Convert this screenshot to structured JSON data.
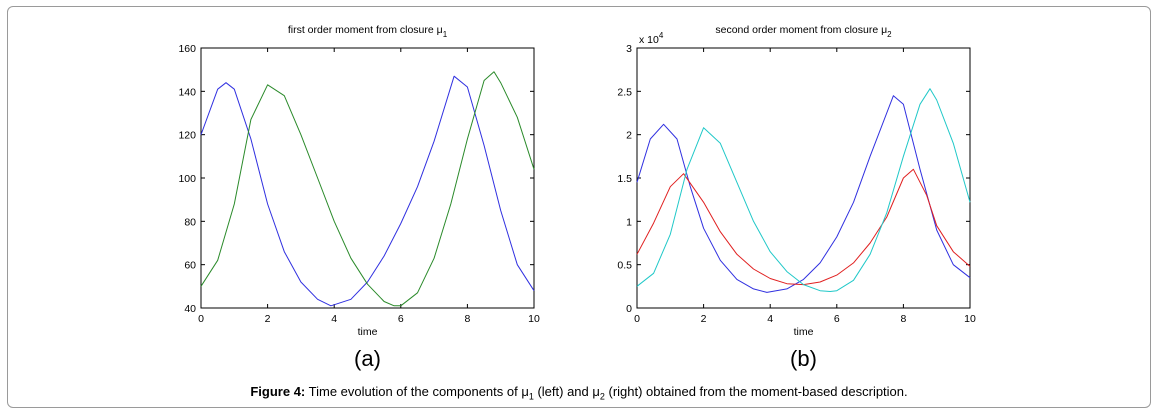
{
  "colors": {
    "blue": "#3030e0",
    "green": "#2a8a2a",
    "red": "#e02020",
    "cyan": "#20c8c8",
    "frame": "#9a9a9a"
  },
  "caption": {
    "label": "Figure 4:",
    "text_part1": " Time evolution of the components of μ",
    "sub1": "1",
    "text_part2": " (left) and μ",
    "sub2": "2",
    "text_part3": " (right) obtained from the moment-based description."
  },
  "chart_data": [
    {
      "type": "line",
      "panel_label": "(a)",
      "title_prefix": "first order moment from closure μ",
      "title_sub": "1",
      "xlabel": "time",
      "ylabel": "",
      "xlim": [
        0,
        10
      ],
      "ylim": [
        40,
        160
      ],
      "xticks": [
        "0",
        "2",
        "4",
        "6",
        "8",
        "10"
      ],
      "yticks": [
        "40",
        "60",
        "80",
        "100",
        "120",
        "140",
        "160"
      ],
      "grid": false,
      "series": [
        {
          "color": "blue",
          "x": [
            0,
            0.5,
            0.75,
            1,
            1.5,
            2,
            2.5,
            3,
            3.5,
            3.9,
            4.5,
            5,
            5.5,
            6,
            6.5,
            7,
            7.6,
            8,
            8.5,
            9,
            9.5,
            10
          ],
          "y": [
            120,
            141,
            144,
            141,
            118,
            88,
            66,
            52,
            44,
            41,
            44,
            52,
            64,
            79,
            96,
            117,
            147,
            142,
            115,
            85,
            60,
            48
          ]
        },
        {
          "color": "green",
          "x": [
            0,
            0.5,
            1,
            1.5,
            2,
            2.5,
            3,
            3.5,
            4,
            4.5,
            5,
            5.5,
            5.8,
            6,
            6.5,
            7,
            7.5,
            8,
            8.5,
            8.8,
            9,
            9.5,
            10
          ],
          "y": [
            50,
            62,
            88,
            127,
            143,
            138,
            120,
            100,
            80,
            63,
            51,
            43,
            41,
            41,
            47,
            63,
            88,
            118,
            145,
            149,
            144,
            128,
            104
          ]
        }
      ]
    },
    {
      "type": "line",
      "panel_label": "(b)",
      "title_prefix": "second order moment from closure μ",
      "title_sub": "2",
      "multiplier_base": "x 10",
      "multiplier_exp": "4",
      "xlabel": "time",
      "ylabel": "",
      "xlim": [
        0,
        10
      ],
      "ylim": [
        0,
        3
      ],
      "xticks": [
        "0",
        "2",
        "4",
        "6",
        "8",
        "10"
      ],
      "yticks": [
        "0",
        "0.5",
        "1",
        "1.5",
        "2",
        "2.5",
        "3"
      ],
      "grid": false,
      "series": [
        {
          "color": "blue",
          "x": [
            0,
            0.4,
            0.8,
            1.2,
            1.6,
            2,
            2.5,
            3,
            3.5,
            3.9,
            4.5,
            5,
            5.5,
            6,
            6.5,
            7,
            7.7,
            8,
            8.5,
            9,
            9.5,
            10
          ],
          "y": [
            1.45,
            1.95,
            2.12,
            1.95,
            1.4,
            0.92,
            0.55,
            0.33,
            0.22,
            0.18,
            0.22,
            0.33,
            0.52,
            0.82,
            1.22,
            1.75,
            2.45,
            2.35,
            1.6,
            0.9,
            0.5,
            0.35
          ]
        },
        {
          "color": "red",
          "x": [
            0,
            0.5,
            1,
            1.4,
            2,
            2.5,
            3,
            3.5,
            4,
            4.5,
            5,
            5.5,
            6,
            6.5,
            7,
            7.5,
            8,
            8.3,
            8.7,
            9,
            9.5,
            10
          ],
          "y": [
            0.62,
            0.98,
            1.4,
            1.55,
            1.22,
            0.88,
            0.62,
            0.45,
            0.34,
            0.28,
            0.27,
            0.3,
            0.38,
            0.52,
            0.75,
            1.05,
            1.5,
            1.6,
            1.3,
            0.95,
            0.65,
            0.48
          ]
        },
        {
          "color": "cyan",
          "x": [
            0,
            0.5,
            1,
            1.5,
            2,
            2.5,
            3,
            3.5,
            4,
            4.5,
            5,
            5.5,
            5.8,
            6,
            6.5,
            7,
            7.5,
            8,
            8.5,
            8.8,
            9,
            9.5,
            10
          ],
          "y": [
            0.25,
            0.4,
            0.85,
            1.6,
            2.08,
            1.9,
            1.45,
            1.0,
            0.65,
            0.42,
            0.27,
            0.2,
            0.19,
            0.2,
            0.32,
            0.62,
            1.1,
            1.75,
            2.35,
            2.53,
            2.4,
            1.9,
            1.22
          ]
        }
      ]
    }
  ]
}
